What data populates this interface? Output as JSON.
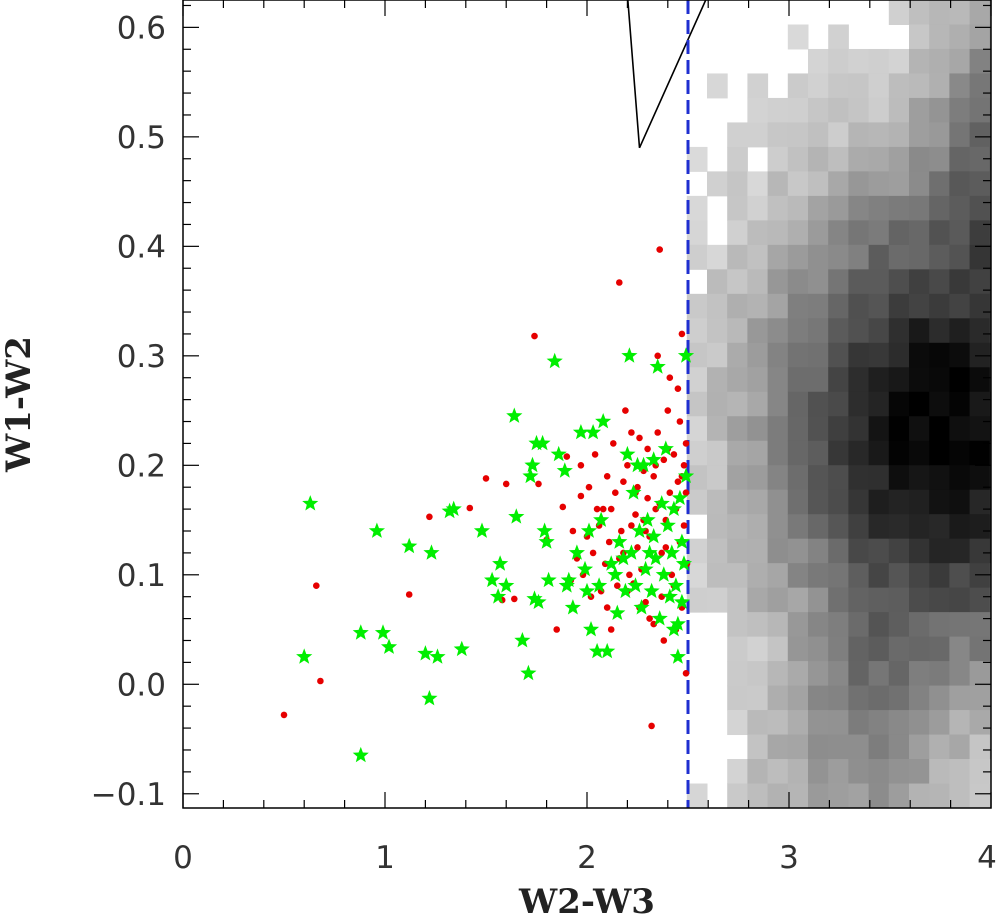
{
  "chart_data": {
    "type": "scatter",
    "xlabel": "W2-W3",
    "ylabel": "W1-W2",
    "xlim": [
      0,
      4
    ],
    "ylim": [
      -0.113,
      0.625
    ],
    "x_ticks": [
      "0",
      "1",
      "2",
      "3",
      "4"
    ],
    "y_ticks": [
      "0.6",
      "0.5",
      "0.4",
      "0.3",
      "0.2",
      "0.1",
      "0.0",
      "−0.1"
    ],
    "x_tick_values": [
      0,
      1,
      2,
      3,
      4
    ],
    "y_tick_values": [
      0.6,
      0.5,
      0.4,
      0.3,
      0.2,
      0.1,
      0.0,
      -0.1
    ],
    "grid": false,
    "legend": "none",
    "cutoff_line": {
      "x": 2.5,
      "color": "#1f2fd0",
      "style": "dashed"
    },
    "wedge_line": {
      "points": [
        [
          2.2,
          0.63
        ],
        [
          2.26,
          0.49
        ],
        [
          2.6,
          0.63
        ]
      ],
      "color": "#000000"
    },
    "density_background": {
      "description": "grey-scale 2D histogram of the comparison sample",
      "x_range": [
        2.5,
        4.0
      ],
      "peak": [
        3.75,
        0.23
      ],
      "colors": {
        "low": "#e6e6e6",
        "high": "#000000"
      }
    },
    "series": [
      {
        "marker": "dot",
        "color": "#e60000",
        "points": [
          [
            0.5,
            -0.028
          ],
          [
            0.66,
            0.09
          ],
          [
            0.68,
            0.003
          ],
          [
            1.12,
            0.082
          ],
          [
            1.22,
            0.153
          ],
          [
            1.42,
            0.161
          ],
          [
            1.5,
            0.188
          ],
          [
            1.6,
            0.183
          ],
          [
            1.58,
            0.077
          ],
          [
            1.64,
            0.078
          ],
          [
            1.74,
            0.318
          ],
          [
            1.76,
            0.183
          ],
          [
            1.8,
            0.132
          ],
          [
            1.85,
            0.05
          ],
          [
            1.88,
            0.162
          ],
          [
            1.9,
            0.208
          ],
          [
            1.92,
            0.095
          ],
          [
            1.95,
            0.115
          ],
          [
            1.97,
            0.172
          ],
          [
            2.0,
            0.135
          ],
          [
            2.02,
            0.08
          ],
          [
            2.04,
            0.21
          ],
          [
            2.06,
            0.145
          ],
          [
            2.08,
            0.16
          ],
          [
            2.1,
            0.19
          ],
          [
            2.12,
            0.05
          ],
          [
            2.14,
            0.175
          ],
          [
            2.16,
            0.367
          ],
          [
            2.18,
            0.12
          ],
          [
            2.2,
            0.2
          ],
          [
            2.22,
            0.23
          ],
          [
            2.23,
            0.092
          ],
          [
            2.24,
            0.155
          ],
          [
            2.25,
            0.18
          ],
          [
            2.26,
            0.225
          ],
          [
            2.27,
            0.105
          ],
          [
            2.28,
            0.195
          ],
          [
            2.29,
            0.14
          ],
          [
            2.3,
            0.17
          ],
          [
            2.31,
            0.06
          ],
          [
            2.32,
            -0.038
          ],
          [
            2.33,
            0.19
          ],
          [
            2.34,
            0.16
          ],
          [
            2.35,
            0.23
          ],
          [
            2.36,
            0.397
          ],
          [
            2.37,
            0.12
          ],
          [
            2.38,
            0.205
          ],
          [
            2.39,
            0.15
          ],
          [
            2.4,
            0.25
          ],
          [
            2.41,
            0.175
          ],
          [
            2.42,
            0.1
          ],
          [
            2.43,
            0.21
          ],
          [
            2.44,
            0.16
          ],
          [
            2.45,
            0.27
          ],
          [
            2.46,
            0.13
          ],
          [
            2.47,
            0.19
          ],
          [
            2.48,
            0.145
          ],
          [
            2.49,
            0.22
          ],
          [
            2.495,
            0.11
          ],
          [
            2.49,
            0.175
          ],
          [
            2.43,
            0.09
          ],
          [
            2.37,
            0.08
          ],
          [
            2.29,
            0.075
          ],
          [
            2.21,
            0.1
          ],
          [
            2.17,
            0.14
          ],
          [
            2.11,
            0.13
          ],
          [
            2.05,
            0.16
          ],
          [
            2.01,
            0.18
          ],
          [
            1.97,
            0.2
          ],
          [
            2.13,
            0.22
          ],
          [
            2.19,
            0.25
          ],
          [
            2.35,
            0.3
          ],
          [
            2.41,
            0.28
          ],
          [
            2.47,
            0.32
          ],
          [
            2.44,
            0.05
          ],
          [
            2.38,
            0.04
          ],
          [
            2.33,
            0.055
          ],
          [
            2.26,
            0.07
          ],
          [
            2.2,
            0.085
          ],
          [
            2.15,
            0.09
          ],
          [
            2.09,
            0.11
          ],
          [
            2.03,
            0.12
          ],
          [
            1.98,
            0.1
          ],
          [
            1.93,
            0.14
          ],
          [
            2.25,
            0.125
          ],
          [
            2.31,
            0.135
          ],
          [
            2.39,
            0.125
          ],
          [
            2.45,
            0.185
          ],
          [
            2.48,
            0.2
          ],
          [
            2.47,
            0.07
          ],
          [
            2.42,
            0.12
          ],
          [
            2.36,
            0.165
          ],
          [
            2.28,
            0.15
          ],
          [
            2.24,
            0.175
          ],
          [
            2.18,
            0.185
          ],
          [
            2.12,
            0.16
          ],
          [
            2.07,
            0.085
          ],
          [
            2.34,
            0.2
          ],
          [
            2.4,
            0.215
          ],
          [
            2.46,
            0.24
          ],
          [
            2.49,
            0.01
          ],
          [
            2.3,
            0.215
          ],
          [
            2.22,
            0.145
          ],
          [
            2.16,
            0.115
          ],
          [
            2.1,
            0.07
          ]
        ]
      },
      {
        "marker": "star",
        "color": "#00ee00",
        "points": [
          [
            0.63,
            0.165
          ],
          [
            0.6,
            0.025
          ],
          [
            0.88,
            0.047
          ],
          [
            0.88,
            -0.065
          ],
          [
            0.96,
            0.14
          ],
          [
            0.99,
            0.047
          ],
          [
            1.02,
            0.034
          ],
          [
            1.12,
            0.126
          ],
          [
            1.2,
            0.028
          ],
          [
            1.23,
            0.12
          ],
          [
            1.22,
            -0.013
          ],
          [
            1.26,
            0.025
          ],
          [
            1.32,
            0.158
          ],
          [
            1.34,
            0.16
          ],
          [
            1.38,
            0.032
          ],
          [
            1.48,
            0.14
          ],
          [
            1.53,
            0.095
          ],
          [
            1.56,
            0.08
          ],
          [
            1.57,
            0.11
          ],
          [
            1.6,
            0.09
          ],
          [
            1.64,
            0.245
          ],
          [
            1.65,
            0.153
          ],
          [
            1.68,
            0.04
          ],
          [
            1.71,
            0.01
          ],
          [
            1.72,
            0.19
          ],
          [
            1.73,
            0.2
          ],
          [
            1.74,
            0.078
          ],
          [
            1.75,
            0.22
          ],
          [
            1.76,
            0.075
          ],
          [
            1.78,
            0.22
          ],
          [
            1.79,
            0.14
          ],
          [
            1.8,
            0.13
          ],
          [
            1.81,
            0.095
          ],
          [
            1.84,
            0.295
          ],
          [
            1.86,
            0.21
          ],
          [
            1.89,
            0.195
          ],
          [
            1.9,
            0.09
          ],
          [
            1.91,
            0.095
          ],
          [
            1.93,
            0.07
          ],
          [
            1.95,
            0.12
          ],
          [
            1.97,
            0.23
          ],
          [
            1.99,
            0.105
          ],
          [
            2.0,
            0.085
          ],
          [
            2.01,
            0.14
          ],
          [
            2.02,
            0.05
          ],
          [
            2.03,
            0.23
          ],
          [
            2.05,
            0.03
          ],
          [
            2.06,
            0.09
          ],
          [
            2.07,
            0.15
          ],
          [
            2.08,
            0.24
          ],
          [
            2.1,
            0.03
          ],
          [
            2.12,
            0.11
          ],
          [
            2.14,
            0.1
          ],
          [
            2.16,
            0.13
          ],
          [
            2.18,
            0.115
          ],
          [
            2.2,
            0.21
          ],
          [
            2.21,
            0.3
          ],
          [
            2.22,
            0.12
          ],
          [
            2.24,
            0.09
          ],
          [
            2.25,
            0.2
          ],
          [
            2.26,
            0.14
          ],
          [
            2.27,
            0.07
          ],
          [
            2.28,
            0.2
          ],
          [
            2.29,
            0.105
          ],
          [
            2.3,
            0.15
          ],
          [
            2.31,
            0.12
          ],
          [
            2.32,
            0.085
          ],
          [
            2.33,
            0.135
          ],
          [
            2.34,
            0.115
          ],
          [
            2.35,
            0.29
          ],
          [
            2.36,
            0.06
          ],
          [
            2.37,
            0.165
          ],
          [
            2.38,
            0.1
          ],
          [
            2.39,
            0.215
          ],
          [
            2.4,
            0.145
          ],
          [
            2.41,
            0.08
          ],
          [
            2.42,
            0.12
          ],
          [
            2.43,
            0.05
          ],
          [
            2.44,
            0.09
          ],
          [
            2.45,
            0.025
          ],
          [
            2.46,
            0.17
          ],
          [
            2.47,
            0.075
          ],
          [
            2.48,
            0.11
          ],
          [
            2.49,
            0.3
          ],
          [
            2.49,
            0.19
          ],
          [
            2.47,
            0.13
          ],
          [
            2.45,
            0.055
          ],
          [
            2.43,
            0.16
          ],
          [
            2.33,
            0.205
          ],
          [
            2.23,
            0.175
          ],
          [
            2.19,
            0.085
          ],
          [
            2.15,
            0.065
          ]
        ]
      }
    ]
  }
}
